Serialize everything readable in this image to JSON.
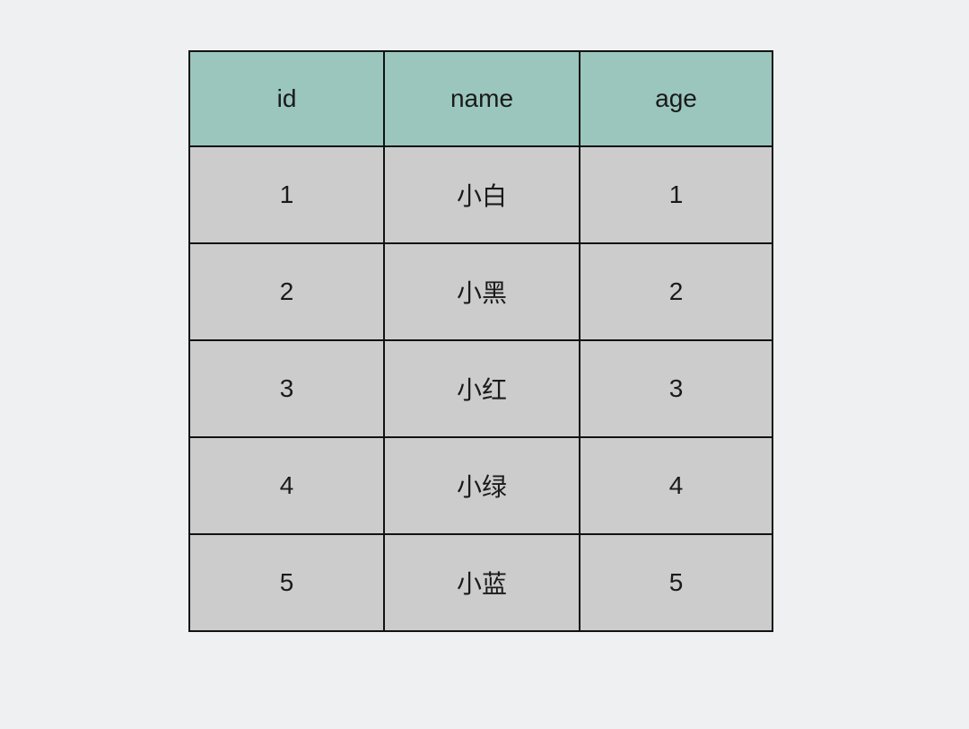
{
  "table": {
    "columns": [
      {
        "key": "id",
        "label": "id"
      },
      {
        "key": "name",
        "label": "name"
      },
      {
        "key": "age",
        "label": "age"
      }
    ],
    "rows": [
      {
        "id": "1",
        "name": "小白",
        "age": "1"
      },
      {
        "id": "2",
        "name": "小黑",
        "age": "2"
      },
      {
        "id": "3",
        "name": "小红",
        "age": "3"
      },
      {
        "id": "4",
        "name": "小绿",
        "age": "4"
      },
      {
        "id": "5",
        "name": "小蓝",
        "age": "5"
      }
    ],
    "colors": {
      "page_bg": "#eff0f2",
      "header_bg": "#9ac6bd",
      "row_bg": "#cccccc",
      "border": "#121212",
      "text": "#1a1a1a"
    }
  }
}
